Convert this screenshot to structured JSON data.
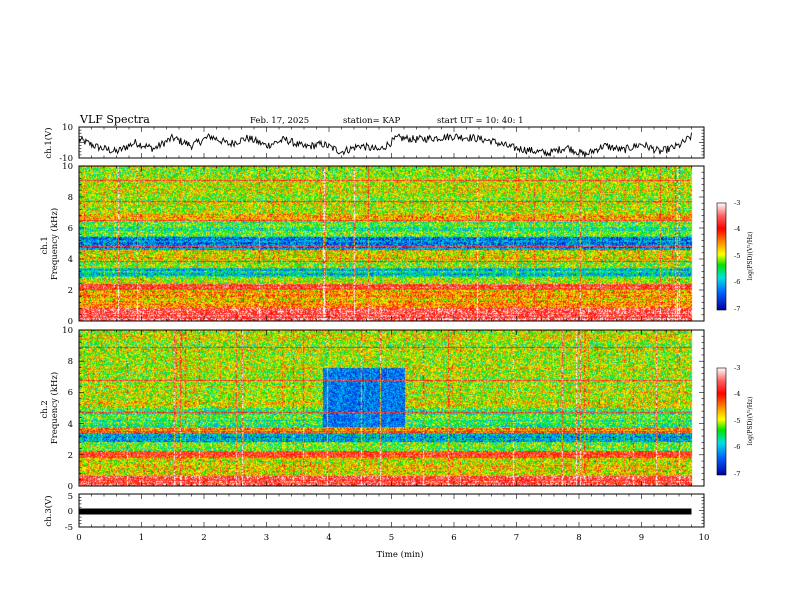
{
  "header": {
    "title": "VLF Spectra",
    "date": "Feb. 17, 2025",
    "station": "station= KAP",
    "start": "start  UT  =   10: 40: 1"
  },
  "colors": {
    "waveform": "#000000",
    "frame": "#000000",
    "background": "#ffffff"
  },
  "chart_data": [
    {
      "type": "line",
      "id": "ch1-waveform",
      "ylabel": "ch.1(V)",
      "ylim": [
        -10,
        10
      ],
      "ytick_labels": [
        "-10",
        "10"
      ],
      "xlim": [
        0,
        10
      ],
      "x": [
        0,
        0.3,
        0.6,
        0.9,
        1.2,
        1.5,
        1.8,
        2.1,
        2.4,
        2.7,
        3.0,
        3.3,
        3.6,
        3.9,
        4.2,
        4.5,
        4.8,
        5.1,
        5.4,
        5.7,
        6.0,
        6.3,
        6.6,
        6.9,
        7.2,
        7.5,
        7.8,
        8.1,
        8.4,
        8.7,
        9.0,
        9.3,
        9.6,
        9.8
      ],
      "values": [
        2,
        -3,
        -6,
        0,
        -4,
        3,
        -2,
        4,
        -1,
        3,
        -2,
        2,
        -3,
        -1,
        -6,
        -2,
        -5,
        3,
        2,
        3,
        4,
        3,
        1,
        -3,
        -5,
        -7,
        -3,
        -8,
        -2,
        -5,
        -1,
        -6,
        -2,
        4
      ]
    },
    {
      "type": "heatmap",
      "id": "ch1-spectrogram",
      "ylabel": "ch.1\nFrequency (kHz)",
      "ylim": [
        0,
        10
      ],
      "xlim": [
        0,
        10
      ],
      "ytick_labels": [
        "0",
        "2",
        "4",
        "6",
        "8",
        "10"
      ],
      "colorbar": {
        "label": "log(PSD)(V²/Hz)",
        "range": [
          -7,
          -3
        ],
        "tick_labels": [
          "-7",
          "-6",
          "-5",
          "-4",
          "-3"
        ]
      },
      "bands": [
        {
          "f0": 0,
          "f1": 0.8,
          "level": -3.6
        },
        {
          "f0": 0.8,
          "f1": 2.0,
          "level": -4.6
        },
        {
          "f0": 2.0,
          "f1": 2.4,
          "level": -3.9
        },
        {
          "f0": 2.4,
          "f1": 2.8,
          "level": -5.0
        },
        {
          "f0": 2.8,
          "f1": 3.4,
          "level": -5.8
        },
        {
          "f0": 3.4,
          "f1": 3.9,
          "level": -5.1
        },
        {
          "f0": 3.9,
          "f1": 4.6,
          "level": -4.8
        },
        {
          "f0": 4.6,
          "f1": 5.4,
          "level": -6.2
        },
        {
          "f0": 5.4,
          "f1": 6.4,
          "level": -5.4
        },
        {
          "f0": 6.4,
          "f1": 6.9,
          "level": -4.7
        },
        {
          "f0": 6.9,
          "f1": 10.0,
          "level": -5.0
        }
      ],
      "lines_khz": [
        0.2,
        0.4,
        2.1,
        2.3,
        3.8,
        4.8,
        6.5,
        7.7,
        9.1
      ]
    },
    {
      "type": "heatmap",
      "id": "ch2-spectrogram",
      "ylabel": "ch.2\nFrequency (kHz)",
      "ylim": [
        0,
        10
      ],
      "xlim": [
        0,
        10
      ],
      "ytick_labels": [
        "0",
        "2",
        "4",
        "6",
        "8",
        "10"
      ],
      "colorbar": {
        "label": "log(PSD)(V²/Hz)",
        "range": [
          -7,
          -3
        ],
        "tick_labels": [
          "-7",
          "-6",
          "-5",
          "-4",
          "-3"
        ]
      },
      "bands": [
        {
          "f0": 0,
          "f1": 0.6,
          "level": -3.7
        },
        {
          "f0": 0.6,
          "f1": 1.8,
          "level": -4.9
        },
        {
          "f0": 1.8,
          "f1": 2.2,
          "level": -4.0
        },
        {
          "f0": 2.2,
          "f1": 2.8,
          "level": -5.3
        },
        {
          "f0": 2.8,
          "f1": 3.4,
          "level": -6.1
        },
        {
          "f0": 3.4,
          "f1": 3.7,
          "level": -4.4
        },
        {
          "f0": 3.7,
          "f1": 5.0,
          "level": -5.4
        },
        {
          "f0": 5.0,
          "f1": 10.0,
          "level": -5.0
        }
      ],
      "quiet_region": {
        "t0": 3.9,
        "t1": 5.2,
        "f0": 3.8,
        "f1": 7.6,
        "level": -6.3
      },
      "lines_khz": [
        0.3,
        2.0,
        3.5,
        4.7,
        6.8,
        8.9
      ]
    },
    {
      "type": "line",
      "id": "ch3-waveform",
      "ylabel": "ch.3(V)",
      "ylim": [
        -5,
        5
      ],
      "ytick_labels": [
        "-5",
        "0",
        "5"
      ],
      "xlim": [
        0,
        10
      ],
      "x": [
        0,
        9.8
      ],
      "values": [
        0,
        0
      ]
    }
  ],
  "xaxis": {
    "label": "Time  (min)",
    "tick_labels": [
      "0",
      "1",
      "2",
      "3",
      "4",
      "5",
      "6",
      "7",
      "8",
      "9",
      "10"
    ]
  }
}
